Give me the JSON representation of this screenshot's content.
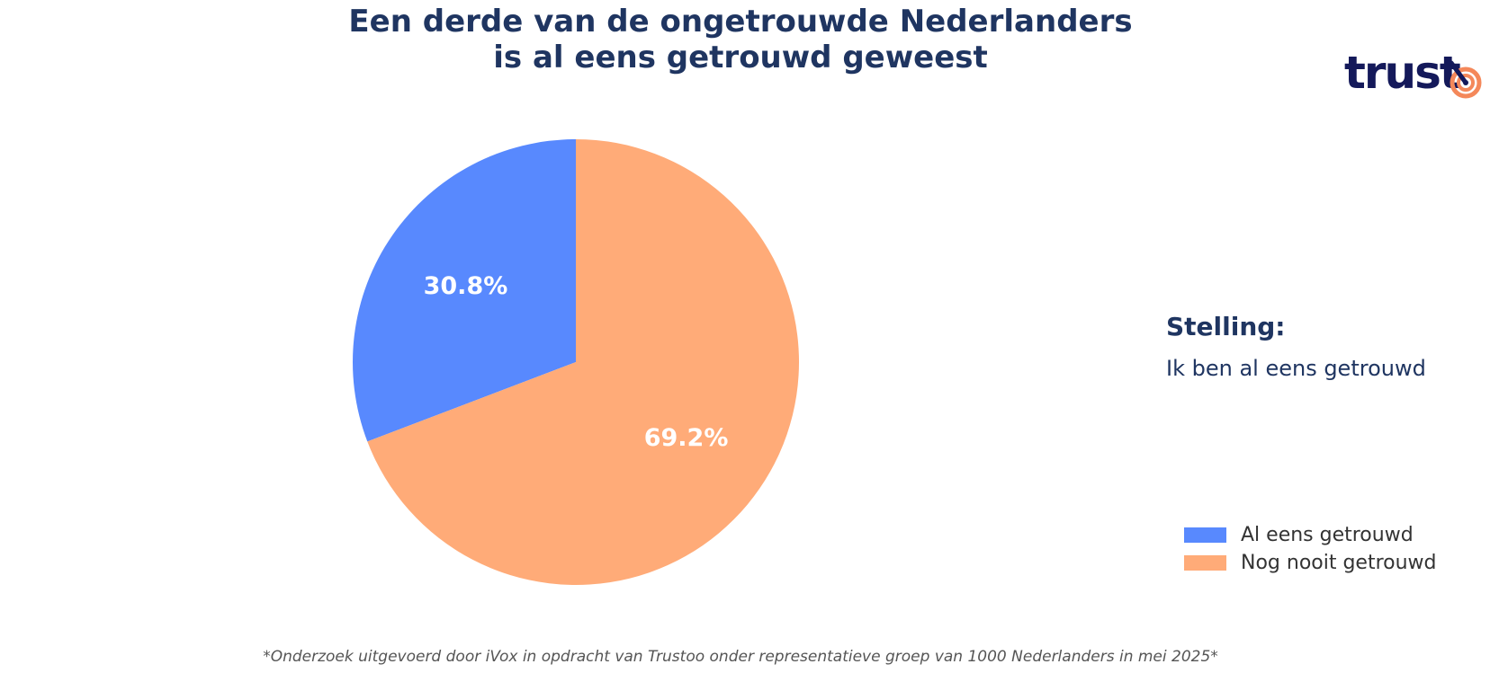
{
  "chart_data": {
    "type": "pie",
    "title_lines": [
      "Een derde van de ongetrouwde Nederlanders",
      "is al eens getrouwd geweest"
    ],
    "slices": [
      {
        "label": "Al eens getrouwd",
        "value": 30.8,
        "display": "30.8%",
        "color": "#5889fe"
      },
      {
        "label": "Nog nooit getrouwd",
        "value": 69.2,
        "display": "69.2%",
        "color": "#ffab78"
      }
    ],
    "start": "top",
    "direction": "counterclockwise",
    "legend_position": "bottom-right"
  },
  "statement": {
    "heading": "Stelling:",
    "text": "Ik ben al eens getrouwd"
  },
  "logo": {
    "text": "trust",
    "icon": "target-icon",
    "text_color": "#14195a",
    "accent_color": "#f4885a"
  },
  "footnote": "*Onderzoek uitgevoerd door iVox in opdracht van Trustoo onder representatieve groep van 1000 Nederlanders in mei 2025*"
}
